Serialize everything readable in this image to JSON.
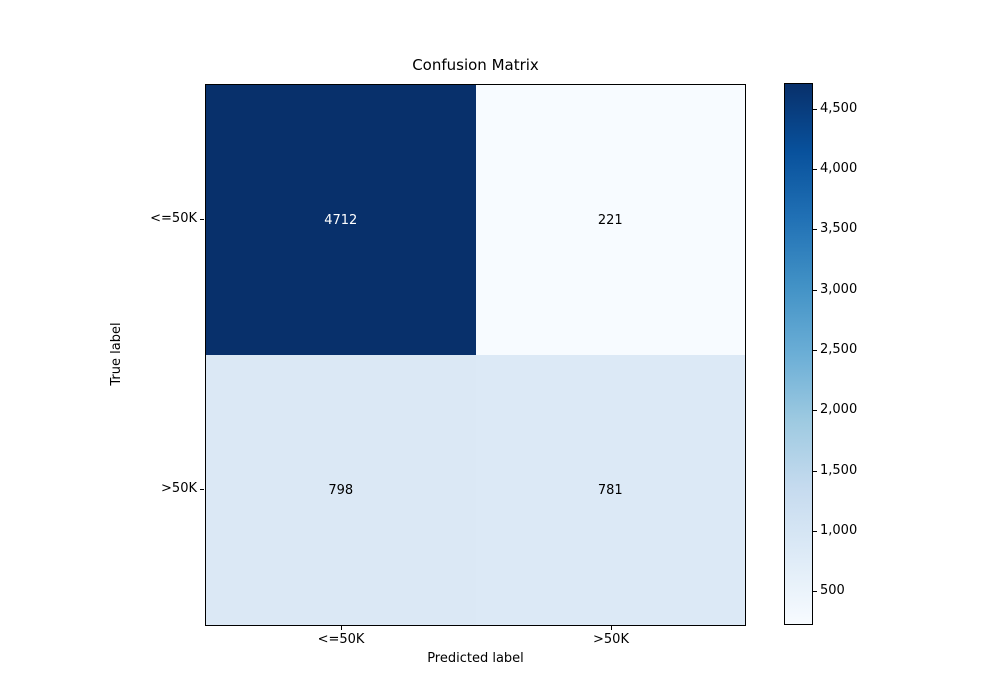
{
  "chart_data": {
    "type": "heatmap",
    "title": "Confusion Matrix",
    "xlabel": "Predicted label",
    "ylabel": "True label",
    "x_tick_labels": [
      "<=50K",
      ">50K"
    ],
    "y_tick_labels": [
      "<=50K",
      ">50K"
    ],
    "values": [
      [
        4712,
        221
      ],
      [
        798,
        781
      ]
    ],
    "cell_colors": [
      [
        "#08306b",
        "#f7fbff"
      ],
      [
        "#dbe8f5",
        "#dce9f6"
      ]
    ],
    "cell_text_colors": [
      [
        "#ffffff",
        "#000000"
      ],
      [
        "#000000",
        "#000000"
      ]
    ],
    "colormap": "Blues",
    "vmin": 221,
    "vmax": 4712,
    "grid": false,
    "colorbar": {
      "position": "right",
      "tick_values": [
        500,
        1000,
        1500,
        2000,
        2500,
        3000,
        3500,
        4000,
        4500
      ],
      "tick_labels": [
        "500",
        "1,000",
        "1,500",
        "2,000",
        "2,500",
        "3,000",
        "3,500",
        "4,000",
        "4,500"
      ]
    }
  }
}
